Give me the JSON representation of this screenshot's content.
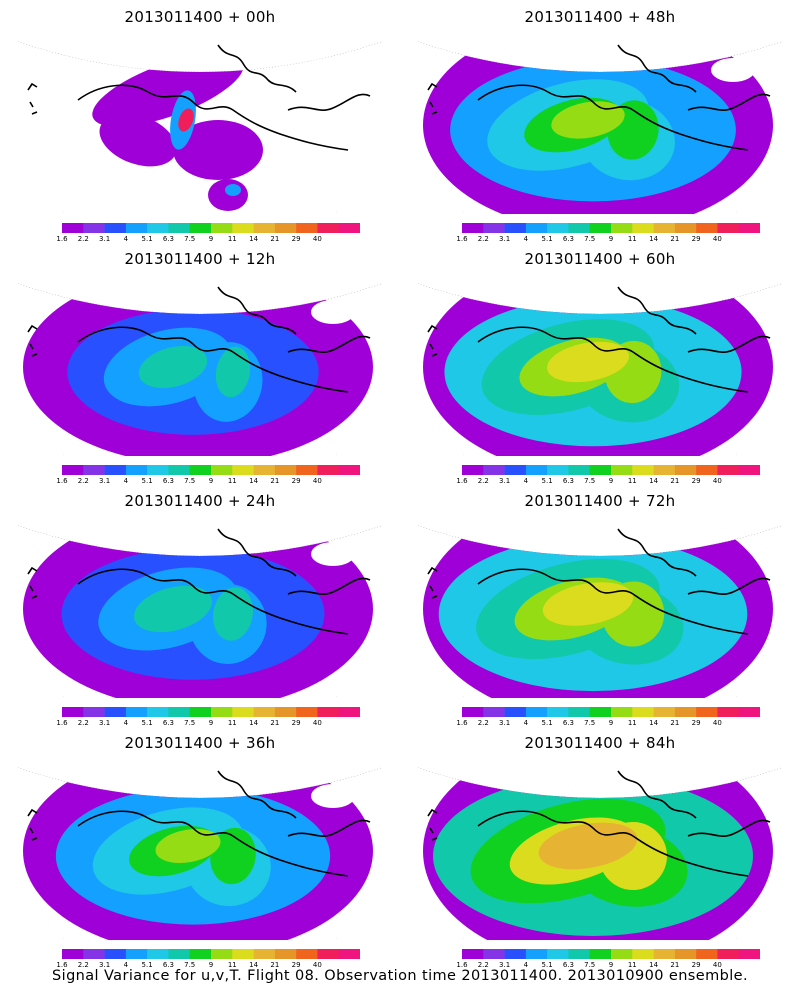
{
  "panels": [
    {
      "title": "2013011400 + 00h",
      "lead": 0
    },
    {
      "title": "2013011400 + 48h",
      "lead": 48
    },
    {
      "title": "2013011400 + 12h",
      "lead": 12
    },
    {
      "title": "2013011400 + 60h",
      "lead": 60
    },
    {
      "title": "2013011400 + 24h",
      "lead": 24
    },
    {
      "title": "2013011400 + 72h",
      "lead": 72
    },
    {
      "title": "2013011400 + 36h",
      "lead": 36
    },
    {
      "title": "2013011400 + 84h",
      "lead": 84
    }
  ],
  "colorbar": {
    "labels": [
      "1.6",
      "2.2",
      "3.1",
      "4",
      "5.1",
      "6.3",
      "7.5",
      "9",
      "11",
      "14",
      "21",
      "29",
      "40"
    ],
    "colors": [
      "#a000d8",
      "#8434e6",
      "#2850ff",
      "#14a0ff",
      "#1ec8e6",
      "#12c8aa",
      "#10d020",
      "#96dc14",
      "#dcdc1e",
      "#e6b432",
      "#e69628",
      "#f0641e",
      "#f01e5a",
      "#f0147f"
    ]
  },
  "footer": "Signal Variance for u,v,T. Flight 08. Observation time 2013011400. 2013010900 ensemble."
}
